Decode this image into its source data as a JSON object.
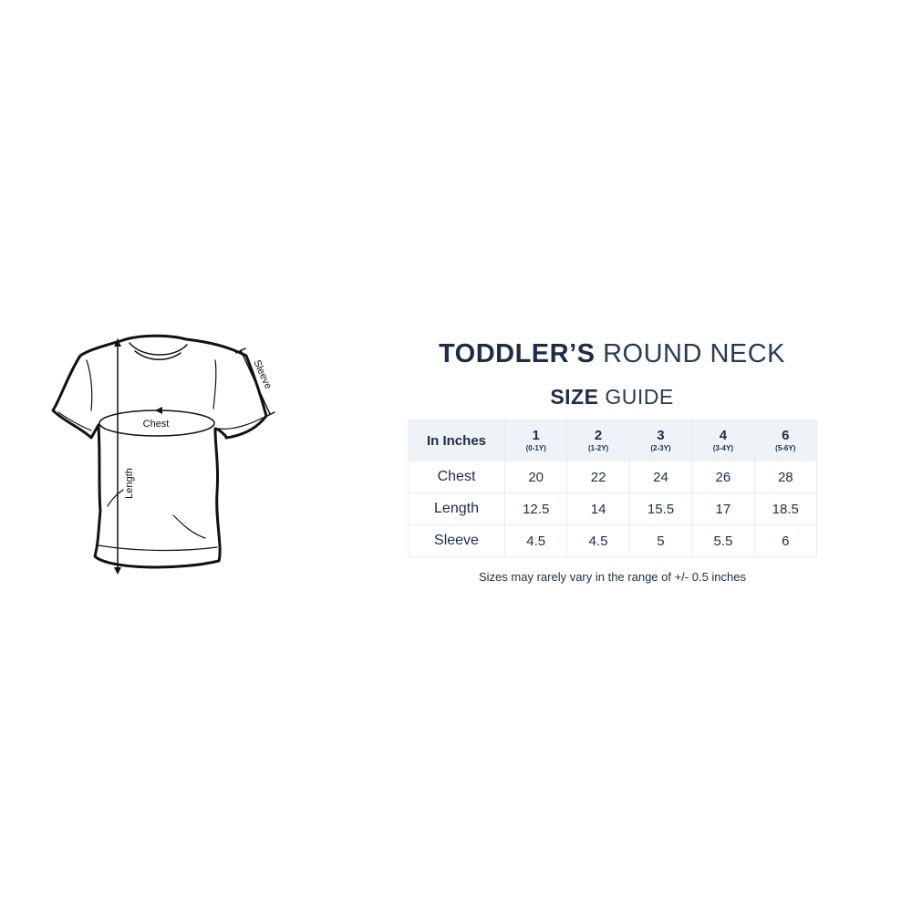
{
  "diagram": {
    "labels": {
      "chest": "Chest",
      "length": "Length",
      "sleeve": "Sleeve"
    }
  },
  "title": {
    "bold": "TODDLER’S",
    "light": "ROUND NECK"
  },
  "subtitle": {
    "bold": "SIZE",
    "light": "GUIDE"
  },
  "table": {
    "header_label": "In Inches",
    "sizes": [
      {
        "size": "1",
        "age": "(0-1Y)"
      },
      {
        "size": "2",
        "age": "(1-2Y)"
      },
      {
        "size": "3",
        "age": "(2-3Y)"
      },
      {
        "size": "4",
        "age": "(3-4Y)"
      },
      {
        "size": "6",
        "age": "(5-6Y)"
      }
    ],
    "rows": [
      {
        "label": "Chest",
        "values": [
          "20",
          "22",
          "24",
          "26",
          "28"
        ]
      },
      {
        "label": "Length",
        "values": [
          "12.5",
          "14",
          "15.5",
          "17",
          "18.5"
        ]
      },
      {
        "label": "Sleeve",
        "values": [
          "4.5",
          "4.5",
          "5",
          "5.5",
          "6"
        ]
      }
    ]
  },
  "note": "Sizes may rarely vary in the range of +/- 0.5 inches",
  "colors": {
    "text": "#1e2d45",
    "header_bg": "#eef3f7",
    "border": "#e8ecf0"
  }
}
